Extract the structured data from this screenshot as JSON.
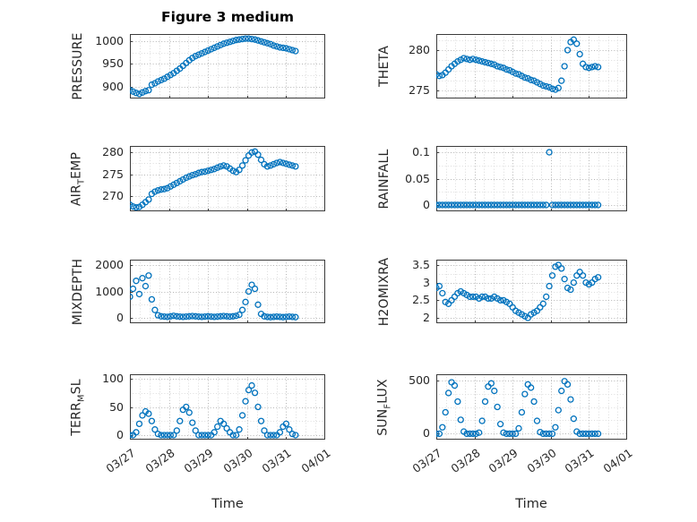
{
  "figure": {
    "title": "Figure 3 medium",
    "xlabel": "Time",
    "marker_color": "#0072BD",
    "axis_color": "#262626",
    "major_grid_color": "#b5b5b5",
    "minor_grid_color": "#dcdcdc"
  },
  "chart_data": {
    "type": "scatter",
    "marker": "open-circle",
    "title": "Figure 3 medium",
    "xlabel": "Time",
    "xlim": [
      0,
      5
    ],
    "x_ticks": [
      0,
      1,
      2,
      3,
      4,
      5
    ],
    "x_tick_labels": [
      "03/27",
      "03/28",
      "03/29",
      "03/30",
      "03/31",
      "04/01"
    ],
    "x_unit": "days since 03/27",
    "grid": "major+minor dotted",
    "x": [
      0,
      0.08,
      0.16,
      0.24,
      0.32,
      0.4,
      0.48,
      0.56,
      0.64,
      0.72,
      0.8,
      0.88,
      0.96,
      1.04,
      1.12,
      1.2,
      1.28,
      1.36,
      1.44,
      1.52,
      1.6,
      1.68,
      1.76,
      1.84,
      1.92,
      2,
      2.08,
      2.16,
      2.24,
      2.32,
      2.4,
      2.48,
      2.56,
      2.64,
      2.72,
      2.8,
      2.88,
      2.96,
      3.04,
      3.12,
      3.2,
      3.28,
      3.36,
      3.44,
      3.52,
      3.6,
      3.68,
      3.76,
      3.84,
      3.92,
      4,
      4.08,
      4.16,
      4.24
    ],
    "subplots": [
      {
        "name": "PRESSURE",
        "ylabel_text": "PRESSURE",
        "ylabel_pre": "PRESSURE",
        "ylabel_sub": "",
        "ylabel_post": "",
        "y_ticks": [
          900,
          950,
          1000
        ],
        "ylim": [
          875,
          1015
        ],
        "values": [
          893,
          890,
          887,
          885,
          888,
          891,
          893,
          905,
          908,
          912,
          915,
          918,
          922,
          926,
          930,
          935,
          940,
          946,
          952,
          958,
          963,
          967,
          970,
          973,
          976,
          979,
          982,
          985,
          988,
          991,
          994,
          996,
          998,
          1000,
          1002,
          1003,
          1004,
          1005,
          1005,
          1004,
          1003,
          1001,
          999,
          997,
          995,
          993,
          990,
          988,
          986,
          985,
          984,
          982,
          980,
          978
        ]
      },
      {
        "name": "THETA",
        "ylabel_text": "THETA",
        "ylabel_pre": "THETA",
        "ylabel_sub": "",
        "ylabel_post": "",
        "y_ticks": [
          275,
          280
        ],
        "ylim": [
          274,
          282
        ],
        "values": [
          277,
          276.8,
          276.9,
          277.2,
          277.6,
          278,
          278.3,
          278.6,
          278.8,
          279,
          278.9,
          278.8,
          278.9,
          278.8,
          278.7,
          278.6,
          278.5,
          278.4,
          278.3,
          278.2,
          278,
          277.9,
          277.8,
          277.6,
          277.5,
          277.3,
          277.1,
          277,
          276.8,
          276.6,
          276.5,
          276.3,
          276.2,
          276,
          275.8,
          275.6,
          275.5,
          275.4,
          275.2,
          275.1,
          275.3,
          276.2,
          278,
          280,
          281,
          281.3,
          280.8,
          279.5,
          278.3,
          277.9,
          277.8,
          277.9,
          278,
          277.9
        ]
      },
      {
        "name": "AIR_TEMP",
        "ylabel_text": "AIR_TEMP",
        "ylabel_pre": "AIR",
        "ylabel_sub": "T",
        "ylabel_post": "EMP",
        "y_ticks": [
          270,
          275,
          280
        ],
        "ylim": [
          266.5,
          281.5
        ],
        "values": [
          268,
          267.6,
          267.4,
          267.5,
          268,
          268.6,
          269.2,
          270.5,
          271,
          271.3,
          271.5,
          271.6,
          271.8,
          272.2,
          272.6,
          273,
          273.4,
          273.8,
          274.2,
          274.5,
          274.8,
          275,
          275.3,
          275.5,
          275.6,
          275.8,
          276,
          276.2,
          276.5,
          276.8,
          277,
          276.8,
          276.3,
          275.8,
          275.5,
          276,
          277,
          278.2,
          279.3,
          280,
          280.2,
          279.5,
          278.3,
          277.3,
          276.8,
          277,
          277.3,
          277.6,
          277.8,
          277.6,
          277.4,
          277.2,
          277,
          276.8
        ]
      },
      {
        "name": "RAINFALL",
        "ylabel_text": "RAINFALL",
        "ylabel_pre": "RAINFALL",
        "ylabel_sub": "",
        "ylabel_post": "",
        "y_ticks": [
          0,
          0.05,
          0.1
        ],
        "ylim": [
          -0.012,
          0.112
        ],
        "values": [
          0,
          0,
          0,
          0,
          0,
          0,
          0,
          0,
          0,
          0,
          0,
          0,
          0,
          0,
          0,
          0,
          0,
          0,
          0,
          0,
          0,
          0,
          0,
          0,
          0,
          0,
          0,
          0,
          0,
          0,
          0,
          0,
          0,
          0,
          0,
          0,
          0,
          0.1,
          0,
          0,
          0,
          0,
          0,
          0,
          0,
          0,
          0,
          0,
          0,
          0,
          0,
          0,
          0,
          0
        ]
      },
      {
        "name": "MIXDEPTH",
        "ylabel_text": "MIXDEPTH",
        "ylabel_pre": "MIXDEPTH",
        "ylabel_sub": "",
        "ylabel_post": "",
        "y_ticks": [
          0,
          1000,
          2000
        ],
        "ylim": [
          -200,
          2200
        ],
        "values": [
          800,
          1100,
          1400,
          900,
          1500,
          1200,
          1600,
          700,
          300,
          100,
          60,
          50,
          40,
          60,
          80,
          60,
          50,
          40,
          50,
          60,
          70,
          60,
          50,
          40,
          50,
          60,
          50,
          40,
          50,
          60,
          70,
          60,
          50,
          60,
          80,
          120,
          300,
          600,
          1000,
          1250,
          1100,
          500,
          150,
          60,
          40,
          30,
          40,
          50,
          40,
          30,
          40,
          50,
          40,
          30
        ]
      },
      {
        "name": "H2OMIXRA",
        "ylabel_text": "H2OMIXRA",
        "ylabel_pre": "H2OMIXRA",
        "ylabel_sub": "",
        "ylabel_post": "",
        "y_ticks": [
          2,
          2.5,
          3,
          3.5
        ],
        "ylim": [
          1.85,
          3.65
        ],
        "values": [
          2.85,
          2.9,
          2.7,
          2.45,
          2.4,
          2.5,
          2.6,
          2.7,
          2.75,
          2.7,
          2.65,
          2.6,
          2.6,
          2.6,
          2.55,
          2.6,
          2.6,
          2.55,
          2.55,
          2.6,
          2.55,
          2.5,
          2.5,
          2.45,
          2.4,
          2.3,
          2.2,
          2.15,
          2.1,
          2.05,
          2,
          2.1,
          2.15,
          2.2,
          2.3,
          2.4,
          2.6,
          2.9,
          3.2,
          3.45,
          3.5,
          3.4,
          3.1,
          2.85,
          2.8,
          3,
          3.2,
          3.3,
          3.2,
          3,
          2.95,
          3,
          3.1,
          3.15
        ]
      },
      {
        "name": "TERR_MSL",
        "ylabel_text": "TERR_MSL",
        "ylabel_pre": "TERR",
        "ylabel_sub": "M",
        "ylabel_post": "SL",
        "y_ticks": [
          0,
          50,
          100
        ],
        "ylim": [
          -8,
          108
        ],
        "values": [
          0,
          0,
          5,
          20,
          35,
          42,
          38,
          25,
          10,
          2,
          0,
          0,
          0,
          0,
          0,
          8,
          25,
          45,
          50,
          40,
          22,
          8,
          0,
          0,
          0,
          0,
          0,
          5,
          15,
          25,
          20,
          12,
          5,
          0,
          0,
          10,
          35,
          60,
          80,
          88,
          75,
          50,
          25,
          8,
          0,
          0,
          0,
          0,
          5,
          15,
          20,
          10,
          2,
          0
        ]
      },
      {
        "name": "SUN_FLUX",
        "ylabel_text": "SUN_FLUX",
        "ylabel_pre": "SUN",
        "ylabel_sub": "F",
        "ylabel_post": "LUX",
        "y_ticks": [
          0,
          500
        ],
        "ylim": [
          -55,
          555
        ],
        "values": [
          0,
          0,
          60,
          200,
          380,
          480,
          450,
          300,
          130,
          20,
          0,
          0,
          0,
          0,
          10,
          120,
          300,
          440,
          470,
          400,
          250,
          90,
          10,
          0,
          0,
          0,
          0,
          50,
          200,
          370,
          460,
          430,
          300,
          120,
          15,
          0,
          0,
          0,
          0,
          60,
          220,
          400,
          490,
          460,
          320,
          140,
          20,
          0,
          0,
          0,
          0,
          0,
          0,
          0
        ]
      }
    ]
  }
}
